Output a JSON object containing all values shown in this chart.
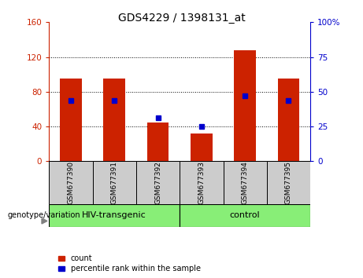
{
  "title": "GDS4229 / 1398131_at",
  "categories": [
    "GSM677390",
    "GSM677391",
    "GSM677392",
    "GSM677393",
    "GSM677394",
    "GSM677395"
  ],
  "bar_values": [
    95,
    95,
    45,
    32,
    128,
    95
  ],
  "dot_values_left": [
    70,
    70,
    50,
    40,
    75,
    70
  ],
  "bar_color": "#cc2200",
  "dot_color": "#0000cc",
  "ylim_left": [
    0,
    160
  ],
  "ylim_right": [
    0,
    100
  ],
  "yticks_left": [
    0,
    40,
    80,
    120,
    160
  ],
  "yticks_right": [
    0,
    25,
    50,
    75,
    100
  ],
  "ytick_labels_left": [
    "0",
    "40",
    "80",
    "120",
    "160"
  ],
  "ytick_labels_right": [
    "0",
    "25",
    "50",
    "75",
    "100%"
  ],
  "group1_label": "HIV-transgenic",
  "group2_label": "control",
  "group1_indices": [
    0,
    1,
    2
  ],
  "group2_indices": [
    3,
    4,
    5
  ],
  "group_bg_color": "#88ee77",
  "sample_bg_color": "#cccccc",
  "legend_count_label": "count",
  "legend_pct_label": "percentile rank within the sample",
  "genotype_label": "genotype/variation",
  "axis_label_color_left": "#cc2200",
  "axis_label_color_right": "#0000cc",
  "bar_width": 0.5,
  "figure_bg": "#ffffff"
}
